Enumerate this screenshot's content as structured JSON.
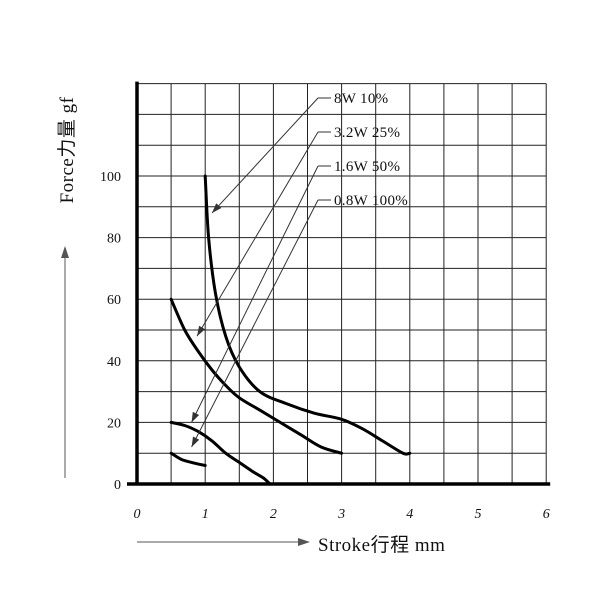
{
  "chart_data": {
    "type": "line",
    "title": "",
    "xlabel": "Stroke行程 mm",
    "ylabel": "Force力量 gf",
    "xlim": [
      0,
      6
    ],
    "ylim": [
      0,
      130
    ],
    "x_ticks": [
      0,
      1,
      2,
      3,
      4,
      5,
      6
    ],
    "y_ticks": [
      0,
      20,
      40,
      60,
      80,
      100
    ],
    "grid": true,
    "x_grid_step": 0.5,
    "y_grid_step": 10,
    "legend_position": "top-right",
    "line_color": "#000000",
    "series": [
      {
        "name": "8W 10%",
        "points": [
          [
            1.0,
            100
          ],
          [
            1.05,
            80
          ],
          [
            1.15,
            62
          ],
          [
            1.3,
            48
          ],
          [
            1.5,
            38
          ],
          [
            1.8,
            30
          ],
          [
            2.2,
            26
          ],
          [
            2.6,
            23
          ],
          [
            3.0,
            21
          ],
          [
            3.3,
            18
          ],
          [
            3.6,
            14
          ],
          [
            3.9,
            10
          ],
          [
            4.0,
            10
          ]
        ]
      },
      {
        "name": "3.2W 25%",
        "points": [
          [
            0.5,
            60
          ],
          [
            0.7,
            50
          ],
          [
            0.9,
            43
          ],
          [
            1.1,
            37
          ],
          [
            1.3,
            32
          ],
          [
            1.5,
            28
          ],
          [
            1.8,
            24
          ],
          [
            2.1,
            20
          ],
          [
            2.4,
            16
          ],
          [
            2.7,
            12
          ],
          [
            3.0,
            10
          ]
        ]
      },
      {
        "name": "1.6W 50%",
        "points": [
          [
            0.5,
            20
          ],
          [
            0.7,
            19
          ],
          [
            0.9,
            17
          ],
          [
            1.1,
            14
          ],
          [
            1.3,
            10
          ],
          [
            1.5,
            7
          ],
          [
            1.7,
            4
          ],
          [
            1.85,
            2
          ],
          [
            1.95,
            0
          ]
        ]
      },
      {
        "name": "0.8W 100%",
        "points": [
          [
            0.5,
            10
          ],
          [
            0.65,
            8
          ],
          [
            0.8,
            7
          ],
          [
            1.0,
            6
          ]
        ]
      }
    ],
    "legend_targets": [
      [
        1.1,
        88
      ],
      [
        0.88,
        48
      ],
      [
        0.8,
        20
      ],
      [
        0.8,
        12
      ]
    ]
  }
}
